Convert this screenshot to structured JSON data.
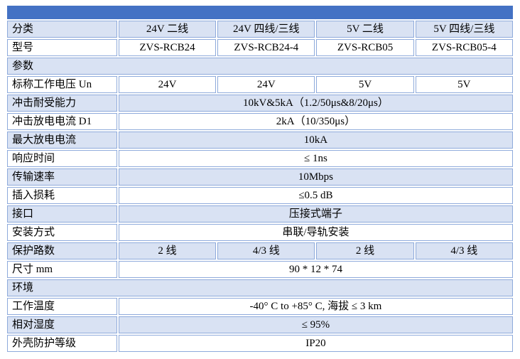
{
  "colors": {
    "accent": "#4472C4",
    "row_alt": "#D9E2F3",
    "row_plain": "#FFFFFF",
    "border": "#8EAADB",
    "text": "#000000"
  },
  "table": {
    "column_count": 5,
    "rows": [
      {
        "name": "title-band",
        "bg": "band",
        "cells": [
          {
            "t": "",
            "span": 5
          }
        ]
      },
      {
        "name": "category",
        "bg": "alt",
        "cells": [
          {
            "t": "分类"
          },
          {
            "t": "24V 二线"
          },
          {
            "t": "24V 四线/三线"
          },
          {
            "t": "5V 二线"
          },
          {
            "t": "5V 四线/三线"
          }
        ]
      },
      {
        "name": "model",
        "bg": "plain",
        "cells": [
          {
            "t": "型号"
          },
          {
            "t": "ZVS-RCB24"
          },
          {
            "t": "ZVS-RCB24-4"
          },
          {
            "t": "ZVS-RCB05"
          },
          {
            "t": "ZVS-RCB05-4"
          }
        ]
      },
      {
        "name": "section-parameters",
        "bg": "alt",
        "cells": [
          {
            "t": "参数",
            "span": 5
          }
        ]
      },
      {
        "name": "nominal-voltage",
        "bg": "plain",
        "cells": [
          {
            "t": "标称工作电压 Un"
          },
          {
            "t": "24V"
          },
          {
            "t": "24V"
          },
          {
            "t": "5V"
          },
          {
            "t": "5V"
          }
        ]
      },
      {
        "name": "impulse-withstand",
        "bg": "alt",
        "cells": [
          {
            "t": "冲击耐受能力"
          },
          {
            "t": "10kV&5kA（1.2/50μs&8/20μs）",
            "span": 4
          }
        ]
      },
      {
        "name": "impulse-discharge-current",
        "bg": "plain",
        "cells": [
          {
            "t": "冲击放电电流 D1"
          },
          {
            "t": "2kA（10/350μs）",
            "span": 4
          }
        ]
      },
      {
        "name": "max-discharge-current",
        "bg": "alt",
        "cells": [
          {
            "t": "最大放电电流"
          },
          {
            "t": "10kA",
            "span": 4
          }
        ]
      },
      {
        "name": "response-time",
        "bg": "plain",
        "cells": [
          {
            "t": "响应时间"
          },
          {
            "t": "≤ 1ns",
            "span": 4
          }
        ]
      },
      {
        "name": "transmission-rate",
        "bg": "alt",
        "cells": [
          {
            "t": "传输速率"
          },
          {
            "t": "10Mbps",
            "span": 4
          }
        ]
      },
      {
        "name": "insertion-loss",
        "bg": "plain",
        "cells": [
          {
            "t": "插入损耗"
          },
          {
            "t": "≤0.5 dB",
            "span": 4
          }
        ]
      },
      {
        "name": "interface",
        "bg": "alt",
        "cells": [
          {
            "t": "接口"
          },
          {
            "t": "压接式端子",
            "span": 4
          }
        ]
      },
      {
        "name": "mounting",
        "bg": "plain",
        "cells": [
          {
            "t": "安装方式"
          },
          {
            "t": "串联/导轨安装",
            "span": 4
          }
        ]
      },
      {
        "name": "protected-lines",
        "bg": "alt",
        "cells": [
          {
            "t": "保护路数"
          },
          {
            "t": "2 线"
          },
          {
            "t": "4/3 线"
          },
          {
            "t": "2 线"
          },
          {
            "t": "4/3 线"
          }
        ]
      },
      {
        "name": "dimensions-mm",
        "bg": "plain",
        "cells": [
          {
            "t": "尺寸 mm"
          },
          {
            "t": "90 * 12 * 74",
            "span": 4
          }
        ]
      },
      {
        "name": "section-environment",
        "bg": "alt",
        "cells": [
          {
            "t": "环境",
            "span": 5
          }
        ]
      },
      {
        "name": "operating-temperature",
        "bg": "plain",
        "cells": [
          {
            "t": "工作温度"
          },
          {
            "t": "-40° C to +85° C, 海拔 ≤ 3 km",
            "span": 4
          }
        ]
      },
      {
        "name": "relative-humidity",
        "bg": "alt",
        "cells": [
          {
            "t": "相对湿度"
          },
          {
            "t": "≤ 95%",
            "span": 4
          }
        ]
      },
      {
        "name": "enclosure-protection-rating",
        "bg": "plain",
        "cells": [
          {
            "t": "外壳防护等级"
          },
          {
            "t": "IP20",
            "span": 4
          }
        ]
      }
    ]
  }
}
